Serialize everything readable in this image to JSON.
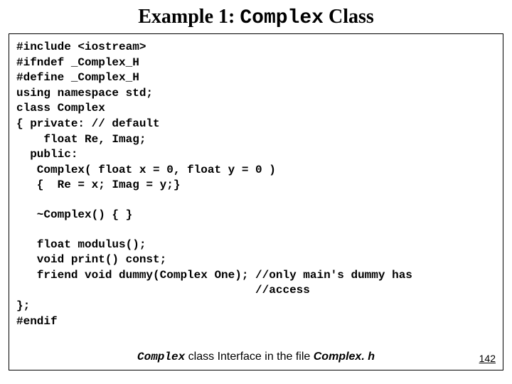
{
  "title": {
    "prefix": "Example 1: ",
    "mono": "Complex",
    "suffix": " Class"
  },
  "code": {
    "lines": [
      "#include <iostream>",
      "#ifndef _Complex_H",
      "#define _Complex_H",
      "using namespace std;",
      "class Complex",
      "{ private: // default",
      "    float Re, Imag;",
      "  public:",
      "   Complex( float x = 0, float y = 0 )",
      "   {  Re = x; Imag = y;}"
    ],
    "destructor": "   ~Complex() { }",
    "methods": [
      "   float modulus();",
      "   void print() const;",
      "   friend void dummy(Complex One); //only main's dummy has",
      "                                   //access"
    ],
    "closing": [
      "};",
      "#endif"
    ]
  },
  "caption": {
    "word1": "Complex",
    "mid": "  class Interface in the file ",
    "word2": "Complex. h"
  },
  "page_number": "142",
  "colors": {
    "background": "#ffffff",
    "text": "#000000",
    "border": "#000000"
  },
  "typography": {
    "title_fontsize": 28,
    "code_fontsize": 16,
    "caption_fontsize": 16,
    "pagenum_fontsize": 14,
    "code_font": "Courier New",
    "title_font": "Georgia"
  }
}
